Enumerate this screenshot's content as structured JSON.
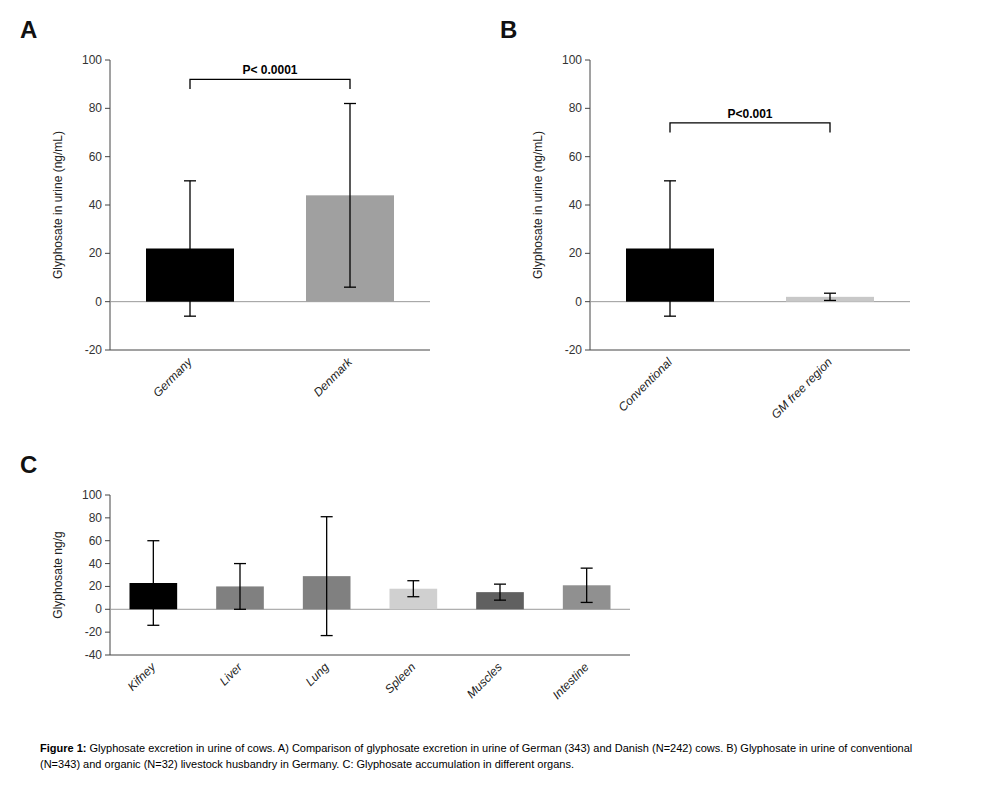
{
  "chart_data": [
    {
      "type": "bar",
      "title": "A",
      "categories": [
        "Germany",
        "Denmark"
      ],
      "values": [
        22,
        44
      ],
      "errors": [
        28,
        38
      ],
      "colors": [
        "#000000",
        "#a0a0a0"
      ],
      "ylabel": "Glyphosate in urine (ng/mL)",
      "ylim": [
        -20,
        100
      ],
      "yticks": [
        -20,
        0,
        20,
        40,
        60,
        80,
        100
      ],
      "annotations": [
        {
          "text": "P< 0.0001",
          "y": 92,
          "drop": 4
        }
      ]
    },
    {
      "type": "bar",
      "title": "B",
      "categories": [
        "Conventional",
        "GM free region"
      ],
      "values": [
        22,
        2
      ],
      "errors": [
        28,
        1.5
      ],
      "colors": [
        "#000000",
        "#c8c8c8"
      ],
      "ylabel": "Glyphosate in urine (ng/mL)",
      "ylim": [
        -20,
        100
      ],
      "yticks": [
        -20,
        0,
        20,
        40,
        60,
        80,
        100
      ],
      "annotations": [
        {
          "text": "P<0.001",
          "y": 74,
          "drop": 4
        }
      ]
    },
    {
      "type": "bar",
      "title": "C",
      "categories": [
        "Kifney",
        "Liver",
        "Lung",
        "Spleen",
        "Muscles",
        "Intestine"
      ],
      "values": [
        23,
        20,
        29,
        18,
        15,
        21
      ],
      "errors": [
        37,
        20,
        52,
        7,
        7,
        15
      ],
      "colors": [
        "#000000",
        "#808080",
        "#808080",
        "#d0d0d0",
        "#606060",
        "#909090"
      ],
      "ylabel": "Glyphosate ng/g",
      "ylim": [
        -40,
        100
      ],
      "yticks": [
        -40,
        -20,
        0,
        20,
        40,
        60,
        80,
        100
      ]
    }
  ],
  "caption_label": "Figure 1:",
  "caption": "Glyphosate excretion in urine of cows. A) Comparison of glyphosate excretion in urine of German (343) and Danish (N=242) cows. B) Glyphosate in urine of conventional (N=343) and organic (N=32) livestock husbandry in Germany. C: Glyphosate accumulation in different organs."
}
